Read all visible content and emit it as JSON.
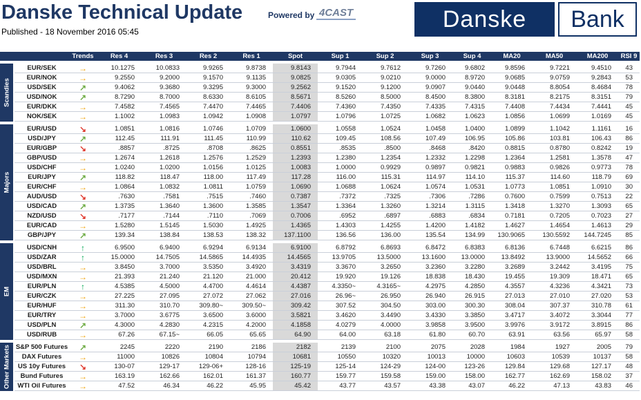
{
  "header": {
    "title": "Danske Technical Update",
    "published": "Published - 18 November 2016 05:45",
    "powered_by": "Powered by",
    "partner_logo": "4CAST",
    "brand": [
      "Danske",
      "Bank"
    ]
  },
  "table": {
    "columns": [
      "Trends",
      "Res 4",
      "Res 3",
      "Res 2",
      "Res 1",
      "Spot",
      "Sup 1",
      "Sup 2",
      "Sup 3",
      "Sup 4",
      "MA20",
      "MA50",
      "MA200",
      "RSI 9"
    ],
    "groups": [
      {
        "name": "Scandies",
        "rows": [
          [
            "EUR/SEK",
            "→",
            "10.1275",
            "10.0833",
            "9.9265",
            "9.8738",
            "9.8143",
            "9.7944",
            "9.7612",
            "9.7260",
            "9.6802",
            "9.8596",
            "9.7221",
            "9.4510",
            "43"
          ],
          [
            "EUR/NOK",
            "→",
            "9.2550",
            "9.2000",
            "9.1570",
            "9.1135",
            "9.0825",
            "9.0305",
            "9.0210",
            "9.0000",
            "8.9720",
            "9.0685",
            "9.0759",
            "9.2843",
            "53"
          ],
          [
            "USD/SEK",
            "↗",
            "9.4062",
            "9.3680",
            "9.3295",
            "9.3000",
            "9.2562",
            "9.1520",
            "9.1200",
            "9.0907",
            "9.0440",
            "9.0448",
            "8.8054",
            "8.4684",
            "78"
          ],
          [
            "USD/NOK",
            "↗",
            "8.7290",
            "8.7000",
            "8.6330",
            "8.6105",
            "8.5671",
            "8.5260",
            "8.5000",
            "8.4500",
            "8.3800",
            "8.3181",
            "8.2175",
            "8.3151",
            "79"
          ],
          [
            "EUR/DKK",
            "→",
            "7.4582",
            "7.4565",
            "7.4470",
            "7.4465",
            "7.4406",
            "7.4360",
            "7.4350",
            "7.4335",
            "7.4315",
            "7.4408",
            "7.4434",
            "7.4441",
            "45"
          ],
          [
            "NOK/SEK",
            "→",
            "1.1002",
            "1.0983",
            "1.0942",
            "1.0908",
            "1.0797",
            "1.0796",
            "1.0725",
            "1.0682",
            "1.0623",
            "1.0856",
            "1.0699",
            "1.0169",
            "45"
          ]
        ]
      },
      {
        "name": "Majors",
        "rows": [
          [
            "EUR/USD",
            "↘",
            "1.0851",
            "1.0816",
            "1.0746",
            "1.0709",
            "1.0600",
            "1.0558",
            "1.0524",
            "1.0458",
            "1.0400",
            "1.0899",
            "1.1042",
            "1.1161",
            "16"
          ],
          [
            "USD/JPY",
            "↗",
            "112.45",
            "111.91",
            "111.45",
            "110.99",
            "110.62",
            "109.45",
            "108.56",
            "107.49",
            "106.95",
            "105.86",
            "103.81",
            "106.43",
            "86"
          ],
          [
            "EUR/GBP",
            "↘",
            ".8857",
            ".8725",
            ".8708",
            ".8625",
            "0.8551",
            ".8535",
            ".8500",
            ".8468",
            ".8420",
            "0.8815",
            "0.8780",
            "0.8242",
            "19"
          ],
          [
            "GBP/USD",
            "→",
            "1.2674",
            "1.2618",
            "1.2576",
            "1.2529",
            "1.2393",
            "1.2380",
            "1.2354",
            "1.2332",
            "1.2298",
            "1.2364",
            "1.2581",
            "1.3578",
            "47"
          ],
          [
            "USD/CHF",
            "→",
            "1.0240",
            "1.0200",
            "1.0156",
            "1.0125",
            "1.0083",
            "1.0000",
            "0.9929",
            "0.9897",
            "0.9821",
            "0.9883",
            "0.9826",
            "0.9773",
            "78"
          ],
          [
            "EUR/JPY",
            "↗",
            "118.82",
            "118.47",
            "118.00",
            "117.49",
            "117.28",
            "116.00",
            "115.31",
            "114.97",
            "114.10",
            "115.37",
            "114.60",
            "118.79",
            "69"
          ],
          [
            "EUR/CHF",
            "→",
            "1.0864",
            "1.0832",
            "1.0811",
            "1.0759",
            "1.0690",
            "1.0688",
            "1.0624",
            "1.0574",
            "1.0531",
            "1.0773",
            "1.0851",
            "1.0910",
            "30"
          ],
          [
            "AUD/USD",
            "↘",
            ".7630",
            ".7581",
            ".7515",
            ".7460",
            "0.7387",
            ".7372",
            ".7325",
            ".7306",
            ".7286",
            "0.7600",
            "0.7599",
            "0.7513",
            "22"
          ],
          [
            "USD/CAD",
            "↗",
            "1.3735",
            "1.3640",
            "1.3600",
            "1.3585",
            "1.3547",
            "1.3364",
            "1.3260",
            "1.3214",
            "1.3115",
            "1.3418",
            "1.3270",
            "1.3093",
            "65"
          ],
          [
            "NZD/USD",
            "↘",
            ".7177",
            ".7144",
            ".7110",
            ".7069",
            "0.7006",
            ".6952",
            ".6897",
            ".6883",
            ".6834",
            "0.7181",
            "0.7205",
            "0.7023",
            "27"
          ],
          [
            "EUR/CAD",
            "→",
            "1.5280",
            "1.5145",
            "1.5030",
            "1.4925",
            "1.4365",
            "1.4303",
            "1.4255",
            "1.4200",
            "1.4182",
            "1.4627",
            "1.4654",
            "1.4613",
            "29"
          ],
          [
            "GBP/JPY",
            "↗",
            "139.34",
            "138.84",
            "138.53",
            "138.32",
            "137.1100",
            "136.56",
            "136.00",
            "135.54",
            "134.99",
            "130.9065",
            "130.5592",
            "144.7245",
            "85"
          ]
        ]
      },
      {
        "name": "EM",
        "rows": [
          [
            "USD/CNH",
            "↑",
            "6.9500",
            "6.9400",
            "6.9294",
            "6.9134",
            "6.9100",
            "6.8792",
            "6.8693",
            "6.8472",
            "6.8383",
            "6.8136",
            "6.7448",
            "6.6215",
            "86"
          ],
          [
            "USD/ZAR",
            "↑",
            "15.0000",
            "14.7505",
            "14.5865",
            "14.4935",
            "14.4565",
            "13.9705",
            "13.5000",
            "13.1600",
            "13.0000",
            "13.8492",
            "13.9000",
            "14.5652",
            "66"
          ],
          [
            "USD/BRL",
            "→",
            "3.8450",
            "3.7000",
            "3.5350",
            "3.4920",
            "3.4319",
            "3.3670",
            "3.2650",
            "3.2360",
            "3.2280",
            "3.2689",
            "3.2442",
            "3.4195",
            "75"
          ],
          [
            "USD/MXN",
            "→",
            "21.393",
            "21.240",
            "21.120",
            "21.000",
            "20.412",
            "19.920",
            "19.126",
            "18.838",
            "18.430",
            "19.455",
            "19.309",
            "18.471",
            "65"
          ],
          [
            "EUR/PLN",
            "↑",
            "4.5385",
            "4.5000",
            "4.4700",
            "4.4614",
            "4.4387",
            "4.3350~",
            "4.3165~",
            "4.2975",
            "4.2850",
            "4.3557",
            "4.3236",
            "4.3421",
            "73"
          ],
          [
            "EUR/CZK",
            "→",
            "27.225",
            "27.095",
            "27.072",
            "27.062",
            "27.016",
            "26.96~",
            "26.950",
            "26.940",
            "26.915",
            "27.013",
            "27.010",
            "27.020",
            "53"
          ],
          [
            "EUR/HUF",
            "→",
            "311.30",
            "310.70",
            "309.80~",
            "309.50~",
            "309.42",
            "307.52",
            "304.50",
            "303.00",
            "300.30",
            "308.04",
            "307.37",
            "310.78",
            "61"
          ],
          [
            "EUR/TRY",
            "→",
            "3.7000",
            "3.6775",
            "3.6500",
            "3.6000",
            "3.5821",
            "3.4620",
            "3.4490",
            "3.4330",
            "3.3850",
            "3.4717",
            "3.4072",
            "3.3044",
            "77"
          ],
          [
            "USD/PLN",
            "↗",
            "4.3000",
            "4.2830",
            "4.2315",
            "4.2000",
            "4.1858",
            "4.0279",
            "4.0000",
            "3.9858",
            "3.9500",
            "3.9976",
            "3.9172",
            "3.8915",
            "86"
          ],
          [
            "USD/RUB",
            "→",
            "67.26",
            "67.15~",
            "66.05",
            "65.65",
            "64.90",
            "64.00",
            "63.18",
            "61.80",
            "60.70",
            "63.91",
            "63.56",
            "65.97",
            "58"
          ]
        ]
      },
      {
        "name": "Other Markets",
        "rows": [
          [
            "S&P 500 Futures",
            "↗",
            "2245",
            "2220",
            "2190",
            "2186",
            "2182",
            "2139",
            "2100",
            "2075",
            "2028",
            "1984",
            "1927",
            "2005",
            "79"
          ],
          [
            "DAX Futures",
            "→",
            "11000",
            "10826",
            "10804",
            "10794",
            "10681",
            "10550",
            "10320",
            "10013",
            "10000",
            "10603",
            "10539",
            "10137",
            "58"
          ],
          [
            "US 10y Futures",
            "↘",
            "130-07",
            "129-17",
            "129-06+",
            "128-16",
            "125-19",
            "125-14",
            "124-29",
            "124-00",
            "123-26",
            "129.84",
            "129.68",
            "127.17",
            "48"
          ],
          [
            "Bund Futures",
            "→",
            "163.19",
            "162.66",
            "162.01",
            "161.37",
            "160.77",
            "159.77",
            "159.58",
            "159.00",
            "158.00",
            "162.77",
            "162.69",
            "158.02",
            "37"
          ],
          [
            "WTI Oil Futures",
            "→",
            "47.52",
            "46.34",
            "46.22",
            "45.95",
            "45.42",
            "43.77",
            "43.57",
            "43.38",
            "43.07",
            "46.22",
            "47.13",
            "43.83",
            "46"
          ]
        ]
      }
    ]
  }
}
